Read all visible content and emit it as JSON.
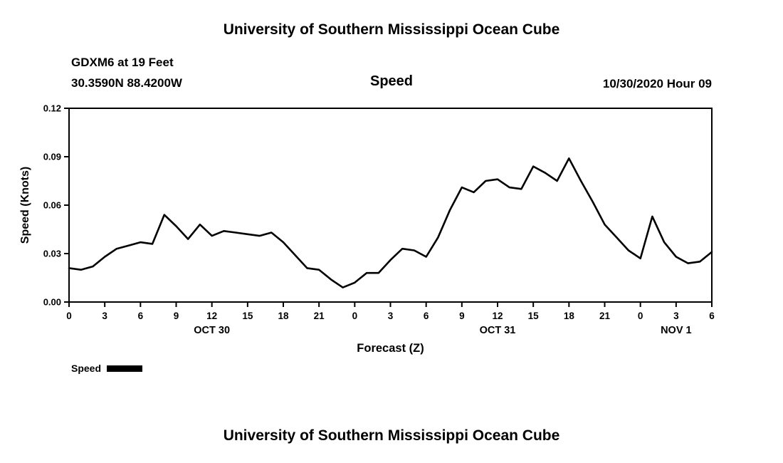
{
  "page": {
    "top_title": "University of Southern Mississippi Ocean Cube",
    "bottom_title": "University of Southern Mississippi Ocean Cube"
  },
  "header": {
    "station": "GDXM6 at 19 Feet",
    "coordinates": "30.3590N 88.4200W",
    "variable_title": "Speed",
    "datetime": "10/30/2020 Hour 09"
  },
  "legend": {
    "label": "Speed",
    "color": "#000000"
  },
  "chart_data": {
    "type": "line",
    "title": "Speed",
    "xlabel": "Forecast (Z)",
    "ylabel": "Speed (Knots)",
    "ylim": [
      0,
      0.12
    ],
    "yticks": [
      0,
      0.03,
      0.06,
      0.09,
      0.12
    ],
    "ytick_labels": [
      "0.00",
      "0.03",
      "0.06",
      "0.09",
      "0.12"
    ],
    "xlim_hours": [
      0,
      54
    ],
    "xticks_hours": [
      0,
      3,
      6,
      9,
      12,
      15,
      18,
      21,
      24,
      27,
      30,
      33,
      36,
      39,
      42,
      45,
      48,
      51,
      54
    ],
    "xtick_labels": [
      "0",
      "3",
      "6",
      "9",
      "12",
      "15",
      "18",
      "21",
      "0",
      "3",
      "6",
      "9",
      "12",
      "15",
      "18",
      "21",
      "0",
      "3",
      "6"
    ],
    "date_labels": [
      {
        "label": "OCT 30",
        "hour": 12
      },
      {
        "label": "OCT 31",
        "hour": 36
      },
      {
        "label": "NOV 1",
        "hour": 51
      }
    ],
    "grid": false,
    "legend_position": "bottom-left",
    "axis_color": "#000000",
    "series": [
      {
        "name": "Speed",
        "color": "#000000",
        "x_hours": [
          0,
          1,
          2,
          3,
          4,
          5,
          6,
          7,
          8,
          9,
          10,
          11,
          12,
          13,
          14,
          15,
          16,
          17,
          18,
          19,
          20,
          21,
          22,
          23,
          24,
          25,
          26,
          27,
          28,
          29,
          30,
          31,
          32,
          33,
          34,
          35,
          36,
          37,
          38,
          39,
          40,
          41,
          42,
          43,
          44,
          45,
          46,
          47,
          48,
          49,
          50,
          51,
          52,
          53,
          54
        ],
        "values": [
          0.021,
          0.02,
          0.022,
          0.028,
          0.033,
          0.035,
          0.037,
          0.036,
          0.054,
          0.047,
          0.039,
          0.048,
          0.041,
          0.044,
          0.043,
          0.042,
          0.041,
          0.043,
          0.037,
          0.029,
          0.021,
          0.02,
          0.014,
          0.009,
          0.012,
          0.018,
          0.018,
          0.026,
          0.033,
          0.032,
          0.028,
          0.04,
          0.057,
          0.071,
          0.068,
          0.075,
          0.076,
          0.071,
          0.07,
          0.084,
          0.08,
          0.075,
          0.089,
          0.075,
          0.062,
          0.048,
          0.04,
          0.032,
          0.027,
          0.053,
          0.037,
          0.028,
          0.024,
          0.025,
          0.031
        ]
      }
    ]
  }
}
